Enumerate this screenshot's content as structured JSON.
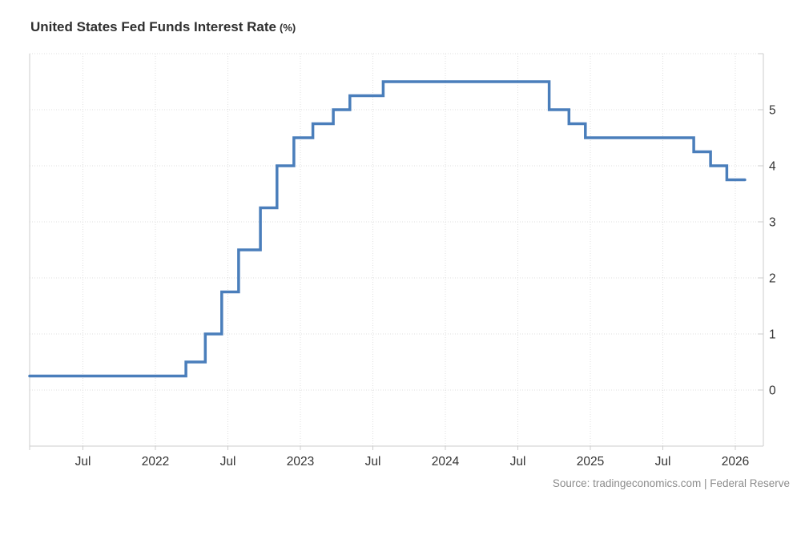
{
  "title": "United States Fed Funds Interest Rate",
  "title_suffix": "(%)",
  "source": "Source: tradingeconomics.com | Federal Reserve",
  "colors": {
    "line": "#4a7ebb",
    "grid": "#dfdfdf",
    "axis": "#cccccc",
    "tick_label": "#333333",
    "title": "#2f2f2f",
    "source_text": "#8c8c8c",
    "background": "#ffffff"
  },
  "chart_data": {
    "type": "line",
    "subtype": "step-after",
    "title": "United States Fed Funds Interest Rate (%)",
    "xlabel": "",
    "ylabel": "",
    "grid": true,
    "legend": false,
    "ylim": [
      0,
      6
    ],
    "yticks": [
      0,
      1,
      2,
      3,
      4,
      5
    ],
    "xticks": [
      {
        "label": "Jul",
        "t": 2021.5
      },
      {
        "label": "2022",
        "t": 2022.0
      },
      {
        "label": "Jul",
        "t": 2022.5
      },
      {
        "label": "2023",
        "t": 2023.0
      },
      {
        "label": "Jul",
        "t": 2023.5
      },
      {
        "label": "2024",
        "t": 2024.0
      },
      {
        "label": "Jul",
        "t": 2024.5
      },
      {
        "label": "2025",
        "t": 2025.0
      },
      {
        "label": "Jul",
        "t": 2025.5
      },
      {
        "label": "2026",
        "t": 2026.0
      }
    ],
    "series": [
      {
        "name": "Fed Funds Interest Rate (%)",
        "points": [
          {
            "date": "2021-02-15",
            "value": 0.25
          },
          {
            "date": "2022-03-17",
            "value": 0.5
          },
          {
            "date": "2022-05-05",
            "value": 1.0
          },
          {
            "date": "2022-06-16",
            "value": 1.75
          },
          {
            "date": "2022-07-28",
            "value": 2.5
          },
          {
            "date": "2022-09-22",
            "value": 3.25
          },
          {
            "date": "2022-11-03",
            "value": 4.0
          },
          {
            "date": "2022-12-15",
            "value": 4.5
          },
          {
            "date": "2023-02-02",
            "value": 4.75
          },
          {
            "date": "2023-03-23",
            "value": 5.0
          },
          {
            "date": "2023-05-04",
            "value": 5.25
          },
          {
            "date": "2023-07-27",
            "value": 5.5
          },
          {
            "date": "2024-09-19",
            "value": 5.0
          },
          {
            "date": "2024-11-08",
            "value": 4.75
          },
          {
            "date": "2024-12-19",
            "value": 4.5
          },
          {
            "date": "2025-09-18",
            "value": 4.25
          },
          {
            "date": "2025-10-30",
            "value": 4.0
          },
          {
            "date": "2025-12-10",
            "value": 3.75
          },
          {
            "date": "2026-01-25",
            "value": 3.75
          }
        ]
      }
    ]
  }
}
